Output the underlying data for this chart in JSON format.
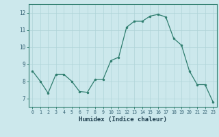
{
  "x": [
    0,
    1,
    2,
    3,
    4,
    5,
    6,
    7,
    8,
    9,
    10,
    11,
    12,
    13,
    14,
    15,
    16,
    17,
    18,
    19,
    20,
    21,
    22,
    23
  ],
  "y": [
    8.6,
    8.0,
    7.3,
    8.4,
    8.4,
    8.0,
    7.4,
    7.35,
    8.1,
    8.1,
    9.2,
    9.4,
    11.15,
    11.5,
    11.5,
    11.8,
    11.9,
    11.75,
    10.5,
    10.1,
    8.6,
    7.8,
    7.8,
    6.8
  ],
  "xlabel": "Humidex (Indice chaleur)",
  "ylim": [
    6.5,
    12.5
  ],
  "xlim": [
    -0.5,
    23.5
  ],
  "yticks": [
    7,
    8,
    9,
    10,
    11,
    12
  ],
  "xticks": [
    0,
    1,
    2,
    3,
    4,
    5,
    6,
    7,
    8,
    9,
    10,
    11,
    12,
    13,
    14,
    15,
    16,
    17,
    18,
    19,
    20,
    21,
    22,
    23
  ],
  "line_color": "#2e7d6e",
  "marker_color": "#2e7d6e",
  "bg_color": "#cce8ec",
  "grid_color": "#b0d4d8",
  "tick_label_color": "#2e5c6e",
  "xlabel_color": "#1a3a4a",
  "spine_color": "#2e7d6e"
}
